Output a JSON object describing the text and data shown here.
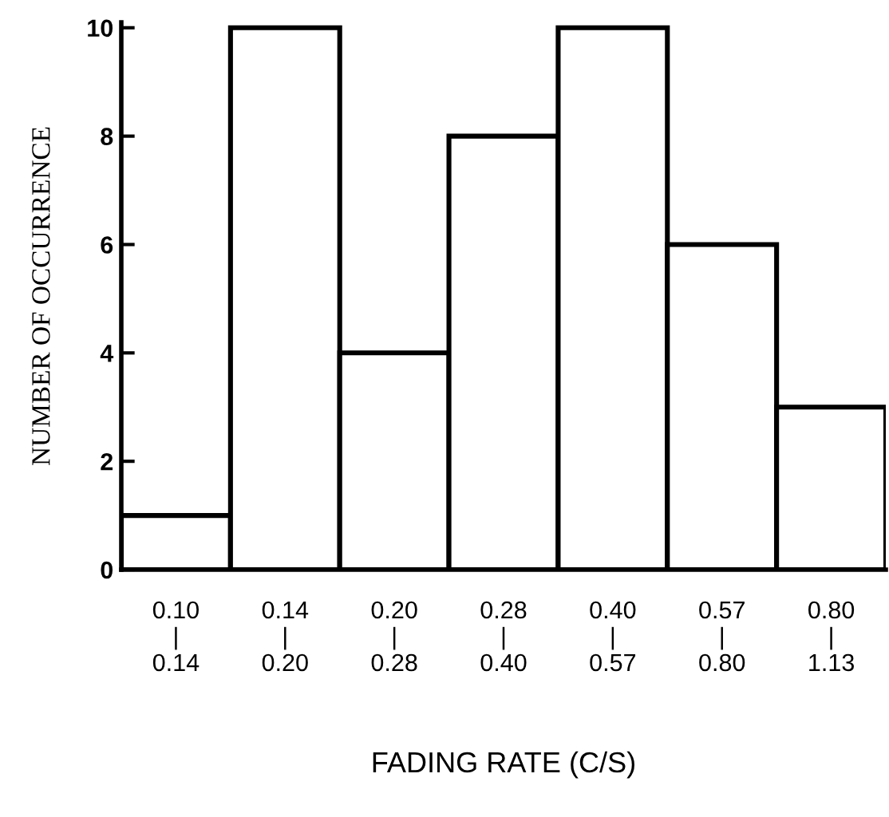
{
  "chart_data": {
    "type": "bar",
    "categories": [
      "0.10\n|\n0.14",
      "0.14\n|\n0.20",
      "0.20\n|\n0.28",
      "0.28\n|\n0.40",
      "0.40\n|\n0.57",
      "0.57\n|\n0.80",
      "0.80\n|\n1.13"
    ],
    "values": [
      1,
      10,
      4,
      8,
      10,
      6,
      3
    ],
    "color": "#ffffff",
    "xlabel": "FADING RATE (C/S)",
    "ylabel": "NUMBER OF OCCURRENCE",
    "ylim": [
      0,
      10.1
    ],
    "yticks": [
      0,
      2,
      4,
      6,
      8,
      10
    ],
    "grid": false,
    "legend": false
  }
}
